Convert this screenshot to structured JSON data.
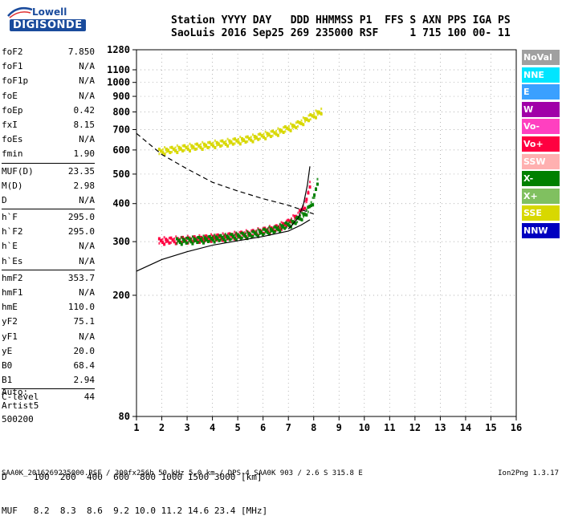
{
  "logo": {
    "line1": "Lowell",
    "line2": "DIGISONDE"
  },
  "header": {
    "labels": [
      "Station",
      "YYYY",
      "DAY",
      "DDD",
      "HHMMSS",
      "P1",
      "FFS",
      "S",
      "AXN",
      "PPS",
      "IGA",
      "PS"
    ],
    "values": [
      "SaoLuis",
      "2016",
      "Sep25",
      "269",
      "235000",
      "RSF",
      "",
      "1",
      "715",
      "100",
      "00-",
      "11"
    ],
    "line1": "Station YYYY DAY   DDD HHMMSS P1  FFS S AXN PPS IGA PS",
    "line2": "SaoLuis 2016 Sep25 269 235000 RSF     1 715 100 00- 11"
  },
  "params": {
    "g1": [
      {
        "name": "foF2",
        "value": "7.850"
      },
      {
        "name": "foF1",
        "value": "N/A"
      },
      {
        "name": "foF1p",
        "value": "N/A"
      },
      {
        "name": "foE",
        "value": "N/A"
      },
      {
        "name": "foEp",
        "value": "0.42"
      },
      {
        "name": "fxI",
        "value": "8.15"
      },
      {
        "name": "foEs",
        "value": "N/A"
      },
      {
        "name": "fmin",
        "value": "1.90"
      }
    ],
    "g2": [
      {
        "name": "MUF(D)",
        "value": "23.35"
      },
      {
        "name": "M(D)",
        "value": "2.98"
      },
      {
        "name": "D",
        "value": "N/A"
      }
    ],
    "g3": [
      {
        "name": "h`F",
        "value": "295.0"
      },
      {
        "name": "h`F2",
        "value": "295.0"
      },
      {
        "name": "h`E",
        "value": "N/A"
      },
      {
        "name": "h`Es",
        "value": "N/A"
      }
    ],
    "g4": [
      {
        "name": "hmF2",
        "value": "353.7"
      },
      {
        "name": "hmF1",
        "value": "N/A"
      },
      {
        "name": "hmE",
        "value": "110.0"
      },
      {
        "name": "yF2",
        "value": "75.1"
      },
      {
        "name": "yF1",
        "value": "N/A"
      },
      {
        "name": "yE",
        "value": "20.0"
      },
      {
        "name": "B0",
        "value": "68.4"
      },
      {
        "name": "B1",
        "value": "2.94"
      }
    ],
    "g5": [
      {
        "name": "C-level",
        "value": "44"
      }
    ]
  },
  "auto": {
    "line1": "Auto:",
    "line2": "Artist5",
    "line3": "500200"
  },
  "legend": [
    {
      "label": "NoVal",
      "color": "#a0a0a0"
    },
    {
      "label": "NNE",
      "color": "#00e5ff"
    },
    {
      "label": "E",
      "color": "#3aa0ff"
    },
    {
      "label": "W",
      "color": "#a000a8"
    },
    {
      "label": "Vo-",
      "color": "#ff40c0"
    },
    {
      "label": "Vo+",
      "color": "#ff0040"
    },
    {
      "label": "SSW",
      "color": "#ffb0b0"
    },
    {
      "label": "X-",
      "color": "#008000"
    },
    {
      "label": "X+",
      "color": "#80c060"
    },
    {
      "label": "SSE",
      "color": "#d8d800"
    },
    {
      "label": "NNW",
      "color": "#0000c0"
    }
  ],
  "dtable": {
    "d_line": "D     100  200  400  600  800 1000 1500 3000 [km]",
    "muf_line": "MUF   8.2  8.3  8.6  9.2 10.0 11.2 14.6 23.4 [MHz]"
  },
  "footer": {
    "text": "SAA0K_2016269235000.RSF / 300fx256h 50 kHz 5.0 km / DPS-4 SAA0K 903 / 2.6 S 315.8 E",
    "version": "Ion2Png 1.3.17"
  },
  "chart_data": {
    "type": "scatter",
    "title": "",
    "xlabel": "",
    "ylabel": "",
    "xlim": [
      1,
      16
    ],
    "ylim": [
      80,
      1280
    ],
    "yscale": "log",
    "grid": true,
    "legend_position": "right",
    "x_ticks": [
      1,
      2,
      3,
      4,
      5,
      6,
      7,
      8,
      9,
      10,
      11,
      12,
      13,
      14,
      15,
      16
    ],
    "y_ticks": [
      80,
      200,
      300,
      400,
      500,
      600,
      700,
      800,
      900,
      1000,
      1100,
      1280
    ],
    "series": [
      {
        "name": "O-trace F2 (virtual height)",
        "color": "#ff0040",
        "x": [
          1.9,
          2.5,
          3.5,
          4.5,
          5.5,
          6.5,
          7.0,
          7.4,
          7.7,
          7.85
        ],
        "y": [
          300,
          302,
          305,
          310,
          318,
          330,
          345,
          365,
          400,
          460
        ]
      },
      {
        "name": "X-trace F2 (virtual height)",
        "color": "#008000",
        "x": [
          2.6,
          3.5,
          4.5,
          5.5,
          6.5,
          7.2,
          7.7,
          8.0,
          8.15
        ],
        "y": [
          300,
          303,
          308,
          315,
          328,
          345,
          370,
          410,
          470
        ]
      },
      {
        "name": "Multiple-hop F2 trace",
        "color": "#d8d800",
        "x": [
          1.9,
          2.5,
          3.5,
          4.5,
          5.5,
          6.5,
          7.3,
          7.8,
          8.3
        ],
        "y": [
          590,
          600,
          615,
          630,
          650,
          680,
          720,
          760,
          800
        ]
      },
      {
        "name": "Model electron density profile",
        "color": "#000000",
        "x": [
          1.0,
          2.0,
          3.0,
          4.0,
          5.0,
          6.0,
          7.0,
          7.5,
          7.85
        ],
        "y": [
          240,
          262,
          278,
          292,
          302,
          312,
          325,
          340,
          354
        ]
      },
      {
        "name": "Model trace",
        "color": "#000000",
        "x": [
          7.0,
          7.4,
          7.6,
          7.75,
          7.85
        ],
        "y": [
          330,
          360,
          400,
          460,
          530
        ]
      },
      {
        "name": "MUF curve (dashed)",
        "color": "#000000",
        "x": [
          1.0,
          2.0,
          3.0,
          4.0,
          5.0,
          6.0,
          7.0,
          8.0
        ],
        "y": [
          680,
          580,
          520,
          470,
          440,
          415,
          395,
          370
        ]
      }
    ]
  }
}
